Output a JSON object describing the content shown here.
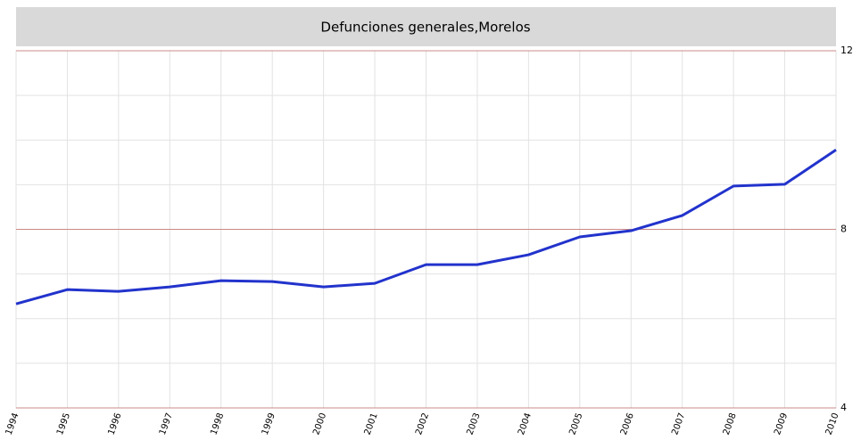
{
  "chart_data": {
    "type": "line",
    "title": "Defunciones generales,Morelos",
    "x": [
      1994,
      1995,
      1996,
      1997,
      1998,
      1999,
      2000,
      2001,
      2002,
      2003,
      2004,
      2005,
      2006,
      2007,
      2008,
      2009,
      2010
    ],
    "series": [
      {
        "name": "Defunciones generales",
        "color": "#2233cc",
        "values": [
          6.33,
          6.65,
          6.61,
          6.71,
          6.85,
          6.83,
          6.71,
          6.79,
          7.21,
          7.21,
          7.43,
          7.83,
          7.97,
          8.31,
          8.97,
          9.01,
          9.78
        ]
      }
    ],
    "xlim": [
      1994,
      2010
    ],
    "xticks": [
      1994,
      1995,
      1996,
      1997,
      1998,
      1999,
      2000,
      2001,
      2002,
      2003,
      2004,
      2005,
      2006,
      2007,
      2008,
      2009,
      2010
    ],
    "ylim": [
      4,
      12
    ],
    "yticks": [
      4,
      8,
      12
    ],
    "minor_yticks": [
      5,
      6,
      7,
      9,
      10,
      11
    ],
    "grid": true,
    "major_grid_color": "#cc8888",
    "minor_grid_color": "#e2e2e2",
    "y_axis_side": "right"
  }
}
